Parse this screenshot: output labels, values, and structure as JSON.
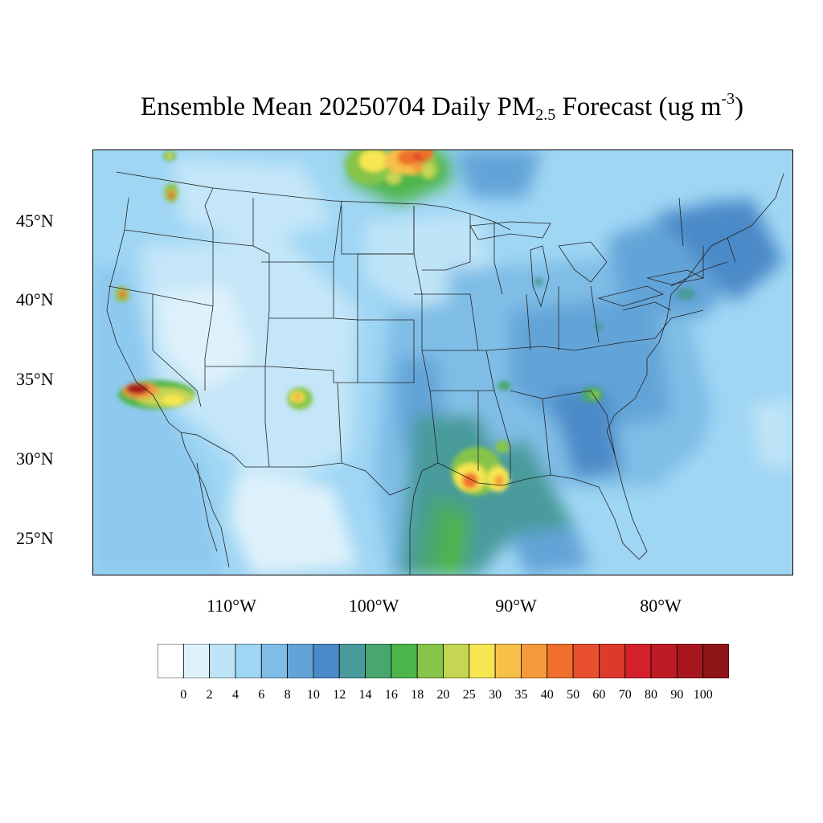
{
  "title": {
    "prefix": "Ensemble Mean 20250704 Daily PM",
    "subscript": "2.5",
    "middle": " Forecast (ug m",
    "superscript": "-3",
    "suffix": ")"
  },
  "map": {
    "lat_labels": [
      "45°N",
      "40°N",
      "35°N",
      "30°N",
      "25°N"
    ],
    "lon_labels": [
      "110°W",
      "100°W",
      "90°W",
      "80°W"
    ]
  },
  "legend": {
    "labels": [
      "0",
      "2",
      "4",
      "6",
      "8",
      "10",
      "12",
      "14",
      "16",
      "18",
      "20",
      "25",
      "30",
      "35",
      "40",
      "50",
      "60",
      "70",
      "80",
      "90",
      "100"
    ],
    "colors": [
      "#ffffff",
      "#dff2fb",
      "#bfe4f7",
      "#9fd6f4",
      "#7fbde6",
      "#63a4d8",
      "#4b8ac8",
      "#4a9b9c",
      "#48a66e",
      "#4db64a",
      "#86c44a",
      "#c4d654",
      "#f7e651",
      "#f7c048",
      "#f59a3c",
      "#f06f2c",
      "#e85030",
      "#de3a2c",
      "#d4202a",
      "#bd1c24",
      "#a8171e",
      "#8f1417"
    ]
  }
}
